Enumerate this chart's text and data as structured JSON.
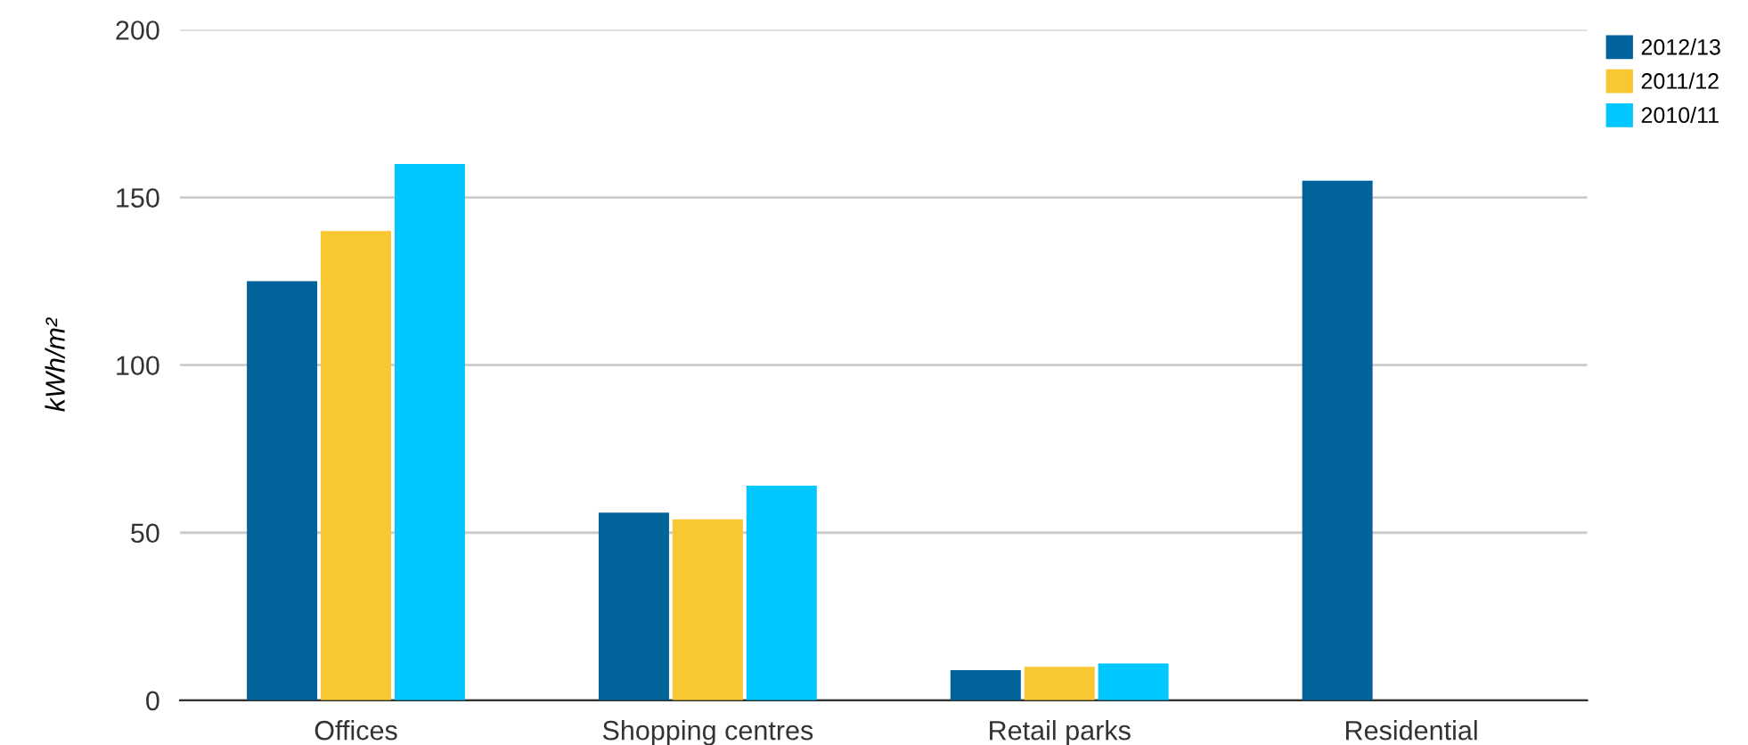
{
  "chart_data": {
    "type": "bar",
    "ylabel": "kWh/m²",
    "categories": [
      "Offices",
      "Shopping centres",
      "Retail parks",
      "Residential"
    ],
    "series": [
      {
        "name": "2012/13",
        "color": "#00639a",
        "values": [
          125,
          56,
          9,
          155
        ]
      },
      {
        "name": "2011/12",
        "color": "#f9c731",
        "values": [
          140,
          54,
          10,
          null
        ]
      },
      {
        "name": "2010/11",
        "color": "#00c7ff",
        "values": [
          160,
          64,
          11,
          null
        ]
      }
    ],
    "ylim": [
      0,
      200
    ],
    "yticks": [
      0,
      50,
      100,
      150,
      200
    ],
    "grid": "y",
    "legend": "top right"
  }
}
